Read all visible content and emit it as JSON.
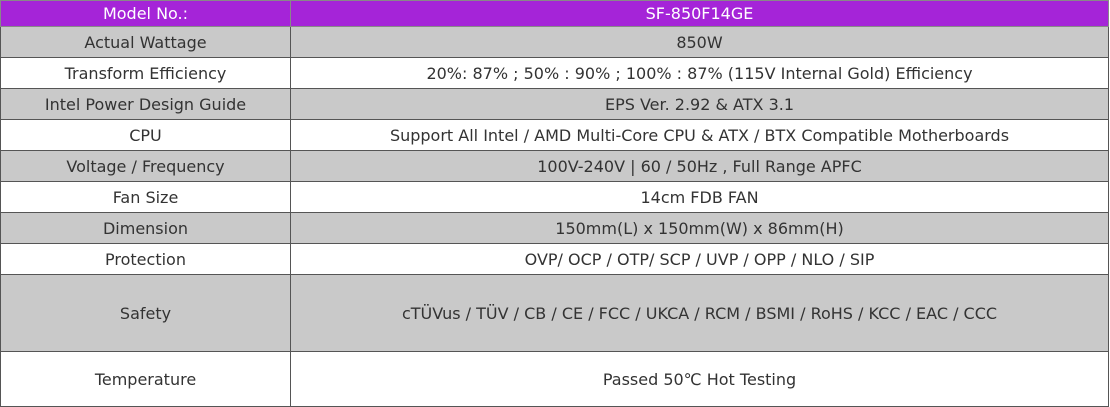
{
  "table": {
    "header": [
      "Model No.:",
      "SF-850F14GE"
    ],
    "rows": [
      [
        "Actual Wattage",
        "850W"
      ],
      [
        "Transform Efficiency",
        "20%: 87% ; 50% : 90% ; 100% : 87% (115V Internal Gold) Efficiency"
      ],
      [
        "Intel Power Design Guide",
        "EPS Ver. 2.92 & ATX 3.1"
      ],
      [
        "CPU",
        "Support All Intel / AMD Multi-Core CPU & ATX / BTX Compatible Motherboards"
      ],
      [
        "Voltage / Frequency",
        "100V-240V | 60 / 50Hz , Full Range APFC"
      ],
      [
        "Fan Size",
        "14cm FDB FAN"
      ],
      [
        "Dimension",
        "150mm(L) x 150mm(W) x 86mm(H)"
      ],
      [
        "Protection",
        "OVP/ OCP / OTP/ SCP / UVP / OPP / NLO / SIP"
      ],
      [
        "Safety",
        "cTÜVus / TÜV / CB / CE / FCC / UKCA / RCM / BSMI / RoHS / KCC / EAC / CCC"
      ],
      [
        "Temperature",
        "Passed 50℃ Hot Testing"
      ]
    ]
  }
}
